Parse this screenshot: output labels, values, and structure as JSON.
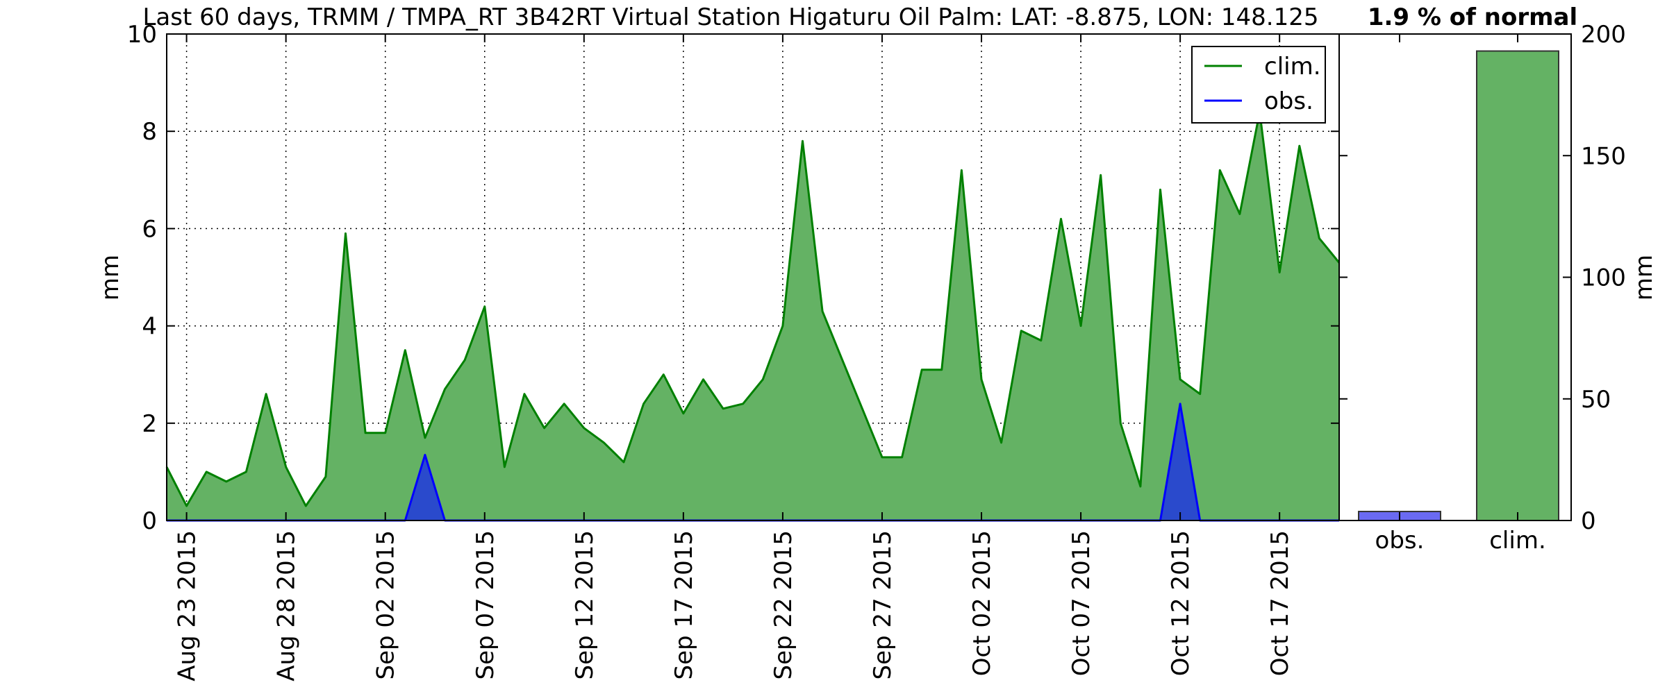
{
  "chart_data": [
    {
      "type": "area",
      "title": "Last 60 days, TRMM / TMPA_RT 3B42RT Virtual Station Higaturu Oil Palm: LAT: -8.875, LON: 148.125",
      "ylabel": "mm",
      "xlabel": "",
      "ylim": [
        0,
        10
      ],
      "yticks": [
        0,
        2,
        4,
        6,
        8,
        10
      ],
      "grid": true,
      "legend_position": "top-right",
      "x_start": "2015-08-22",
      "x_end": "2015-10-20",
      "xticks": [
        {
          "date": "2015-08-23",
          "label": "Aug 23 2015"
        },
        {
          "date": "2015-08-28",
          "label": "Aug 28 2015"
        },
        {
          "date": "2015-09-02",
          "label": "Sep 02 2015"
        },
        {
          "date": "2015-09-07",
          "label": "Sep 07 2015"
        },
        {
          "date": "2015-09-12",
          "label": "Sep 12 2015"
        },
        {
          "date": "2015-09-17",
          "label": "Sep 17 2015"
        },
        {
          "date": "2015-09-22",
          "label": "Sep 22 2015"
        },
        {
          "date": "2015-09-27",
          "label": "Sep 27 2015"
        },
        {
          "date": "2015-10-02",
          "label": "Oct 02 2015"
        },
        {
          "date": "2015-10-07",
          "label": "Oct 07 2015"
        },
        {
          "date": "2015-10-12",
          "label": "Oct 12 2015"
        },
        {
          "date": "2015-10-17",
          "label": "Oct 17 2015"
        }
      ],
      "series": [
        {
          "name": "clim.",
          "line_color": "#008000",
          "fill_color": "#64b264",
          "points": [
            [
              "2015-08-22",
              1.1
            ],
            [
              "2015-08-23",
              0.3
            ],
            [
              "2015-08-24",
              1.0
            ],
            [
              "2015-08-25",
              0.8
            ],
            [
              "2015-08-26",
              1.0
            ],
            [
              "2015-08-27",
              2.6
            ],
            [
              "2015-08-28",
              1.1
            ],
            [
              "2015-08-29",
              0.3
            ],
            [
              "2015-08-30",
              0.9
            ],
            [
              "2015-08-31",
              5.9
            ],
            [
              "2015-09-01",
              1.8
            ],
            [
              "2015-09-02",
              1.8
            ],
            [
              "2015-09-03",
              3.5
            ],
            [
              "2015-09-04",
              1.7
            ],
            [
              "2015-09-05",
              2.7
            ],
            [
              "2015-09-06",
              3.3
            ],
            [
              "2015-09-07",
              4.4
            ],
            [
              "2015-09-08",
              1.1
            ],
            [
              "2015-09-09",
              2.6
            ],
            [
              "2015-09-10",
              1.9
            ],
            [
              "2015-09-11",
              2.4
            ],
            [
              "2015-09-12",
              1.9
            ],
            [
              "2015-09-13",
              1.6
            ],
            [
              "2015-09-14",
              1.2
            ],
            [
              "2015-09-15",
              2.4
            ],
            [
              "2015-09-16",
              3.0
            ],
            [
              "2015-09-17",
              2.2
            ],
            [
              "2015-09-18",
              2.9
            ],
            [
              "2015-09-19",
              2.3
            ],
            [
              "2015-09-20",
              2.4
            ],
            [
              "2015-09-21",
              2.9
            ],
            [
              "2015-09-22",
              4.0
            ],
            [
              "2015-09-23",
              7.8
            ],
            [
              "2015-09-24",
              4.3
            ],
            [
              "2015-09-25",
              3.3
            ],
            [
              "2015-09-26",
              2.3
            ],
            [
              "2015-09-27",
              1.3
            ],
            [
              "2015-09-28",
              1.3
            ],
            [
              "2015-09-29",
              3.1
            ],
            [
              "2015-09-30",
              3.1
            ],
            [
              "2015-10-01",
              7.2
            ],
            [
              "2015-10-02",
              2.9
            ],
            [
              "2015-10-03",
              1.6
            ],
            [
              "2015-10-04",
              3.9
            ],
            [
              "2015-10-05",
              3.7
            ],
            [
              "2015-10-06",
              6.2
            ],
            [
              "2015-10-07",
              4.0
            ],
            [
              "2015-10-08",
              7.1
            ],
            [
              "2015-10-09",
              2.0
            ],
            [
              "2015-10-10",
              0.7
            ],
            [
              "2015-10-11",
              6.8
            ],
            [
              "2015-10-12",
              2.9
            ],
            [
              "2015-10-13",
              2.6
            ],
            [
              "2015-10-14",
              7.2
            ],
            [
              "2015-10-15",
              6.3
            ],
            [
              "2015-10-16",
              8.4
            ],
            [
              "2015-10-17",
              5.1
            ],
            [
              "2015-10-18",
              7.7
            ],
            [
              "2015-10-19",
              5.8
            ],
            [
              "2015-10-20",
              5.3
            ]
          ]
        },
        {
          "name": "obs.",
          "line_color": "#0000ff",
          "fill_color": "#2a4acc",
          "points": [
            [
              "2015-08-22",
              0
            ],
            [
              "2015-09-03",
              0
            ],
            [
              "2015-09-04",
              1.35
            ],
            [
              "2015-09-05",
              0
            ],
            [
              "2015-10-11",
              0
            ],
            [
              "2015-10-12",
              2.4
            ],
            [
              "2015-10-13",
              0
            ],
            [
              "2015-10-20",
              0
            ]
          ]
        }
      ]
    },
    {
      "type": "bar",
      "title": "1.9 % of normal",
      "ylabel": "mm",
      "ylim": [
        0,
        200
      ],
      "yticks": [
        0,
        50,
        100,
        150,
        200
      ],
      "categories": [
        "obs.",
        "clim."
      ],
      "values": [
        3.7,
        193
      ],
      "colors": [
        "#6a6af2",
        "#64b264"
      ],
      "edge_color": "#333333"
    }
  ]
}
